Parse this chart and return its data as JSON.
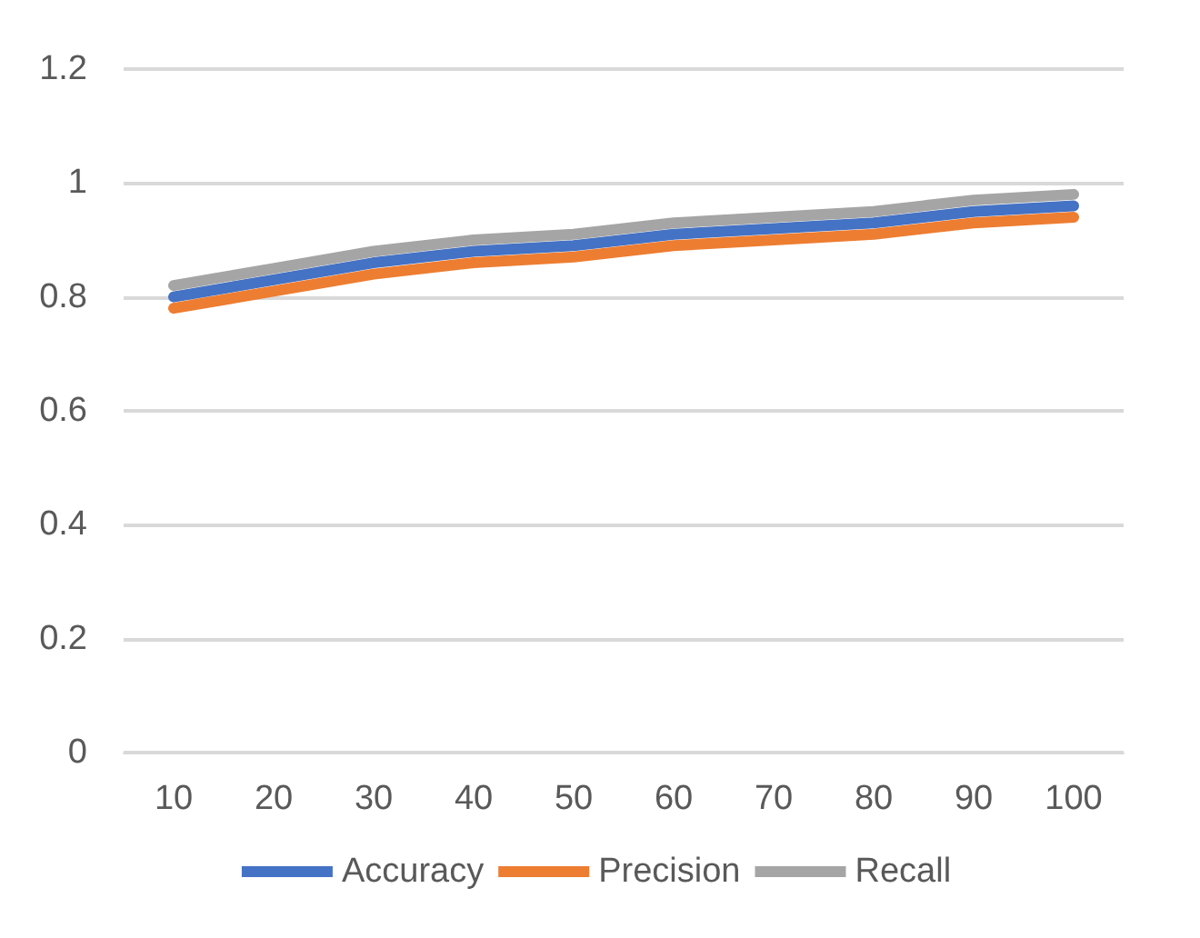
{
  "chart_data": {
    "type": "line",
    "categories": [
      "10",
      "20",
      "30",
      "40",
      "50",
      "60",
      "70",
      "80",
      "90",
      "100"
    ],
    "series": [
      {
        "name": "Accuracy",
        "color": "#4472c4",
        "values": [
          0.8,
          0.83,
          0.86,
          0.88,
          0.89,
          0.91,
          0.92,
          0.93,
          0.95,
          0.96
        ]
      },
      {
        "name": "Precision",
        "color": "#ed7d31",
        "values": [
          0.78,
          0.81,
          0.84,
          0.86,
          0.87,
          0.89,
          0.9,
          0.91,
          0.93,
          0.94
        ]
      },
      {
        "name": "Recall",
        "color": "#a5a5a5",
        "values": [
          0.82,
          0.85,
          0.88,
          0.9,
          0.91,
          0.93,
          0.94,
          0.95,
          0.97,
          0.98
        ]
      }
    ],
    "ylim": [
      0,
      1.2
    ],
    "yticks": [
      0,
      0.2,
      0.4,
      0.6,
      0.8,
      1,
      1.2
    ],
    "grid": "y",
    "legend": "bottom",
    "marker": "none",
    "line_style": "solid"
  }
}
